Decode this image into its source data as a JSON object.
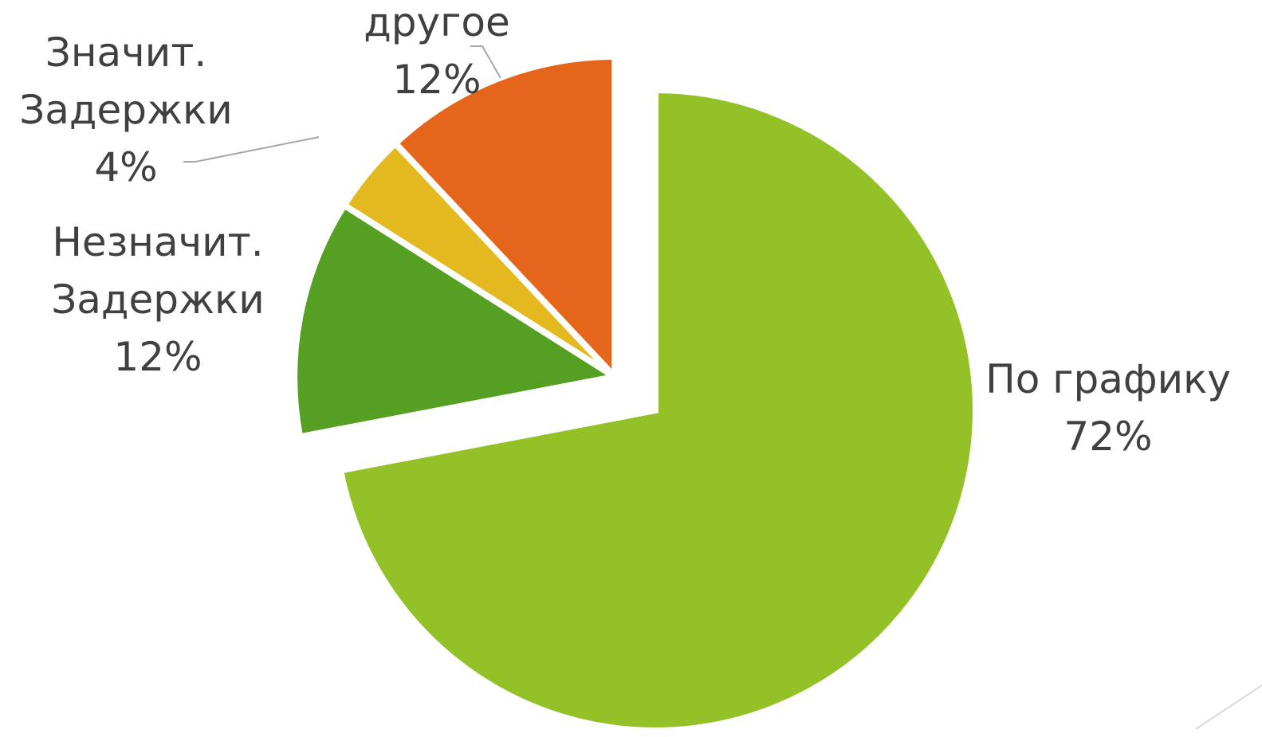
{
  "chart_data": {
    "type": "pie",
    "categories": [
      "По графику",
      "Незначит. Задержки",
      "Значит. Задержки",
      "другое"
    ],
    "values": [
      72,
      12,
      4,
      12
    ],
    "value_labels": [
      "72%",
      "12%",
      "4%",
      "12%"
    ],
    "colors": [
      "#93c127",
      "#55a022",
      "#e4b91f",
      "#e5651a"
    ]
  }
}
